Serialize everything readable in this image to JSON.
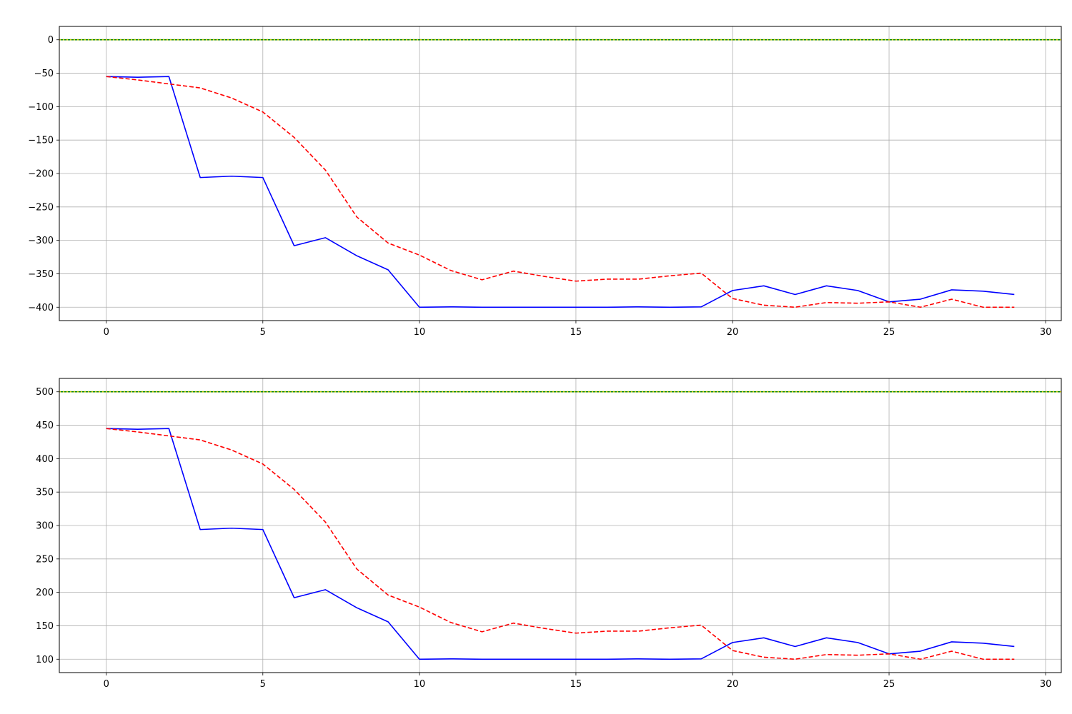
{
  "chart_data": [
    {
      "type": "line",
      "title": "",
      "xlabel": "",
      "ylabel": "",
      "xlim": [
        -1.5,
        30.5
      ],
      "ylim": [
        -420,
        20
      ],
      "xticks": [
        0,
        5,
        10,
        15,
        20,
        25,
        30
      ],
      "yticks": [
        0,
        -50,
        -100,
        -150,
        -200,
        -250,
        -300,
        -350,
        -400
      ],
      "grid": true,
      "legend_position": "lower-left",
      "series": [
        {
          "name": "",
          "color": "#0000ff",
          "style": "solid",
          "x": [
            0,
            1,
            2,
            3,
            4,
            5,
            6,
            7,
            8,
            9,
            10,
            11,
            12,
            13,
            14,
            15,
            16,
            17,
            18,
            19,
            20,
            21,
            22,
            23,
            24,
            25,
            26,
            27,
            28,
            29
          ],
          "values": [
            -55,
            -56,
            -55,
            -206,
            -204,
            -206,
            -308,
            -296,
            -323,
            -344,
            -400,
            -399.5,
            -400,
            -400,
            -400,
            -400,
            -400,
            -399.5,
            -400,
            -399.5,
            -375,
            -368,
            -381,
            -368,
            -375,
            -392,
            -388,
            -374,
            -376,
            -381
          ]
        },
        {
          "name": "",
          "color": "#ff0000",
          "style": "dashed",
          "x": [
            0,
            1,
            2,
            3,
            4,
            5,
            6,
            7,
            8,
            9,
            10,
            11,
            12,
            13,
            14,
            15,
            16,
            17,
            18,
            19,
            20,
            21,
            22,
            23,
            24,
            25,
            26,
            27,
            28,
            29
          ],
          "values": [
            -55,
            -60,
            -66,
            -72,
            -87,
            -108,
            -146,
            -195,
            -265,
            -304,
            -322,
            -345,
            -359,
            -346,
            -354,
            -361,
            -358,
            -358,
            -353,
            -349,
            -387,
            -397,
            -400,
            -393,
            -394,
            -392,
            -400,
            -388,
            -400,
            -400
          ]
        },
        {
          "name": "",
          "color": "#008000",
          "style": "solid",
          "in_legend": false,
          "x": [
            -1.5,
            30.5
          ],
          "values": [
            0,
            0
          ]
        },
        {
          "name": "",
          "color": "#cccc00",
          "style": "dotted",
          "in_legend": false,
          "x": [
            -1.5,
            30.5
          ],
          "values": [
            0,
            0
          ]
        }
      ]
    },
    {
      "type": "line",
      "title": "",
      "xlabel": "",
      "ylabel": "",
      "xlim": [
        -1.5,
        30.5
      ],
      "ylim": [
        80,
        520
      ],
      "xticks": [
        0,
        5,
        10,
        15,
        20,
        25,
        30
      ],
      "yticks": [
        500,
        450,
        400,
        350,
        300,
        250,
        200,
        150,
        100
      ],
      "grid": true,
      "legend_position": "lower-left",
      "series": [
        {
          "name": "",
          "color": "#0000ff",
          "style": "solid",
          "x": [
            0,
            1,
            2,
            3,
            4,
            5,
            6,
            7,
            8,
            9,
            10,
            11,
            12,
            13,
            14,
            15,
            16,
            17,
            18,
            19,
            20,
            21,
            22,
            23,
            24,
            25,
            26,
            27,
            28,
            29
          ],
          "values": [
            445,
            444,
            445,
            294,
            296,
            294,
            192,
            204,
            177,
            156,
            100,
            100.5,
            100,
            100,
            100,
            100,
            100,
            100.5,
            100,
            100.5,
            125,
            132,
            119,
            132,
            125,
            108,
            112,
            126,
            124,
            119
          ]
        },
        {
          "name": "",
          "color": "#ff0000",
          "style": "dashed",
          "x": [
            0,
            1,
            2,
            3,
            4,
            5,
            6,
            7,
            8,
            9,
            10,
            11,
            12,
            13,
            14,
            15,
            16,
            17,
            18,
            19,
            20,
            21,
            22,
            23,
            24,
            25,
            26,
            27,
            28,
            29
          ],
          "values": [
            445,
            440,
            434,
            428,
            413,
            392,
            354,
            305,
            235,
            196,
            178,
            155,
            141,
            154,
            146,
            139,
            142,
            142,
            147,
            151,
            113,
            103,
            100,
            107,
            106,
            108,
            100,
            112,
            100,
            100
          ]
        },
        {
          "name": "",
          "color": "#008000",
          "style": "solid",
          "x": [
            -1.5,
            30.5
          ],
          "values": [
            500,
            500
          ]
        },
        {
          "name": "",
          "color": "#cccc00",
          "style": "dotted",
          "in_legend": false,
          "x": [
            -1.5,
            30.5
          ],
          "values": [
            500,
            500
          ]
        }
      ]
    }
  ]
}
